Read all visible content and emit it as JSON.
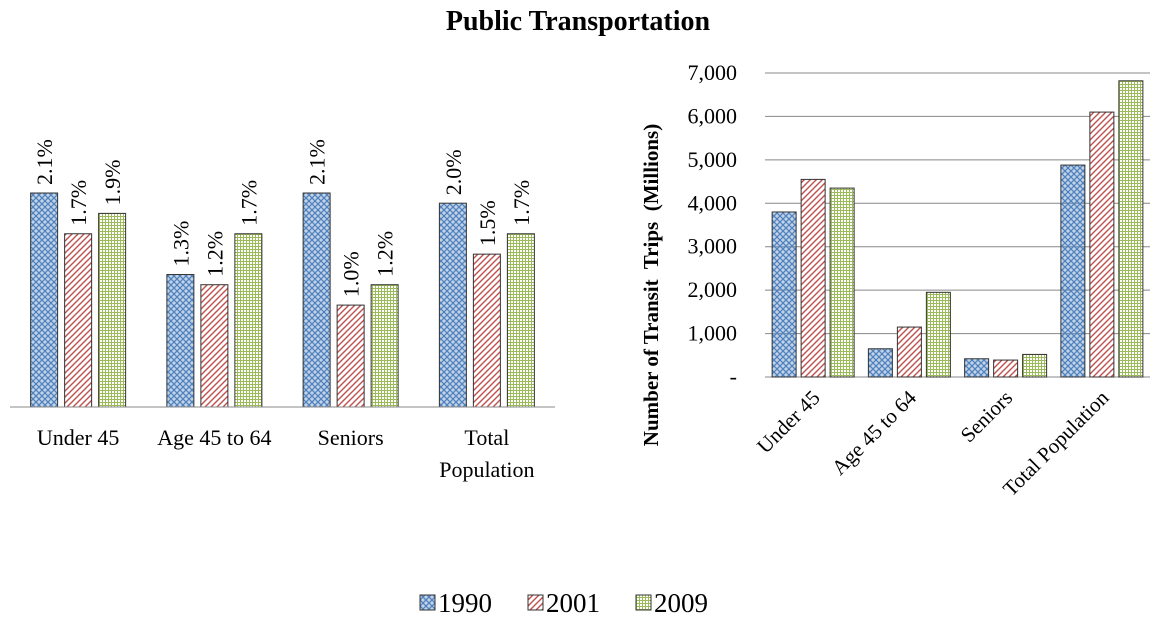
{
  "title": "Public Transportation",
  "chart_data": [
    {
      "type": "bar",
      "categories": [
        "Under 45",
        "Age 45 to 64",
        "Seniors",
        "Total Population"
      ],
      "series": [
        {
          "name": "1990",
          "color": "#4f81bd",
          "values": [
            2.1,
            1.3,
            2.1,
            2.0
          ],
          "value_labels": [
            "2.1%",
            "1.3%",
            "2.1%",
            "2.0%"
          ]
        },
        {
          "name": "2001",
          "color": "#c0504d",
          "values": [
            1.7,
            1.2,
            1.0,
            1.5
          ],
          "value_labels": [
            "1.7%",
            "1.2%",
            "1.0%",
            "1.5%"
          ]
        },
        {
          "name": "2009",
          "color": "#9bbb59",
          "values": [
            1.9,
            1.7,
            1.2,
            1.7
          ],
          "value_labels": [
            "1.9%",
            "1.7%",
            "1.2%",
            "1.7%"
          ]
        }
      ]
    },
    {
      "type": "bar",
      "y_label": "Number of Transit  Trips  (Millions)",
      "categories": [
        "Under 45",
        "Age 45 to 64",
        "Seniors",
        "Total Population"
      ],
      "ylim": [
        0,
        7000
      ],
      "yticks": [
        {
          "value": 0,
          "label": "-"
        },
        {
          "value": 1000,
          "label": "1,000"
        },
        {
          "value": 2000,
          "label": "2,000"
        },
        {
          "value": 3000,
          "label": "3,000"
        },
        {
          "value": 4000,
          "label": "4,000"
        },
        {
          "value": 5000,
          "label": "5,000"
        },
        {
          "value": 6000,
          "label": "6,000"
        },
        {
          "value": 7000,
          "label": "7,000"
        }
      ],
      "grid": true,
      "series": [
        {
          "color": "#4f81bd",
          "values": [
            3800,
            650,
            420,
            4880
          ]
        },
        {
          "color": "#c0504d",
          "values": [
            4550,
            1150,
            390,
            6100
          ]
        },
        {
          "color": "#9bbb59",
          "values": [
            4350,
            1950,
            520,
            6820
          ]
        }
      ]
    }
  ]
}
